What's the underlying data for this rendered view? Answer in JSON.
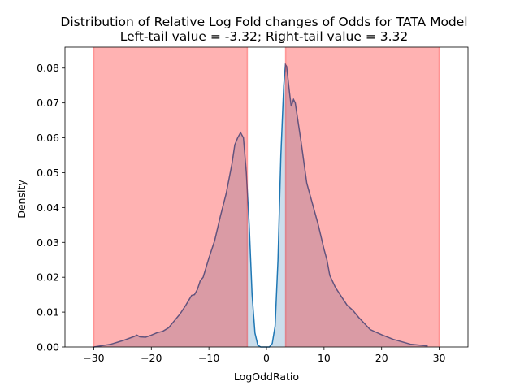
{
  "chart_data": {
    "type": "area",
    "title": "Distribution of Relative Log Fold changes of Odds for TATA Model",
    "subtitle": "Left-tail value = -3.32;  Right-tail value = 3.32",
    "xlabel": "LogOddRatio",
    "ylabel": "Density",
    "xlim": [
      -35,
      35
    ],
    "ylim": [
      0,
      0.086
    ],
    "xticks": [
      -30,
      -20,
      -10,
      0,
      10,
      20,
      30
    ],
    "yticks": [
      0.0,
      0.01,
      0.02,
      0.03,
      0.04,
      0.05,
      0.06,
      0.07,
      0.08
    ],
    "xtick_labels": [
      "−30",
      "−20",
      "−10",
      "0",
      "10",
      "20",
      "30"
    ],
    "ytick_labels": [
      "0.00",
      "0.01",
      "0.02",
      "0.03",
      "0.04",
      "0.05",
      "0.06",
      "0.07",
      "0.08"
    ],
    "grid": false,
    "tail_regions": [
      {
        "x_start": -30,
        "x_end": -3.32
      },
      {
        "x_start": 3.32,
        "x_end": 30
      }
    ],
    "series": [
      {
        "x": [
          -30,
          -27,
          -25,
          -23,
          -22.5,
          -22,
          -21,
          -20,
          -19,
          -18,
          -17,
          -16,
          -15,
          -14,
          -13,
          -12.5,
          -12,
          -11.5,
          -11,
          -10,
          -9,
          -8,
          -7,
          -6,
          -5.5,
          -5,
          -4.5,
          -4,
          -3.5,
          -3,
          -2.5,
          -2,
          -1.5,
          -1,
          -0.5,
          0,
          0.5,
          1,
          1.5,
          2,
          2.5,
          3,
          3.3,
          3.5,
          4,
          4.3,
          4.7,
          5,
          6,
          7,
          8,
          9,
          10,
          10.5,
          11,
          12,
          13,
          14,
          15,
          16,
          18,
          20,
          22,
          25,
          28
        ],
        "y": [
          0.0,
          0.0008,
          0.0018,
          0.003,
          0.0034,
          0.0029,
          0.0028,
          0.0034,
          0.0041,
          0.0045,
          0.0055,
          0.0075,
          0.0095,
          0.012,
          0.0148,
          0.015,
          0.0165,
          0.019,
          0.02,
          0.0255,
          0.0305,
          0.0375,
          0.044,
          0.0525,
          0.058,
          0.06,
          0.0615,
          0.06,
          0.05,
          0.035,
          0.015,
          0.004,
          0.0005,
          0.0,
          0.0,
          0.0,
          0.0,
          0.001,
          0.006,
          0.025,
          0.055,
          0.075,
          0.081,
          0.0805,
          0.073,
          0.069,
          0.071,
          0.07,
          0.059,
          0.047,
          0.041,
          0.035,
          0.028,
          0.025,
          0.0205,
          0.017,
          0.0145,
          0.012,
          0.0105,
          0.0085,
          0.005,
          0.0035,
          0.0022,
          0.0008,
          0.0003
        ]
      }
    ],
    "colors": {
      "kde_line": "#1f77b4",
      "kde_fill": "#a6c8e0",
      "tail_fill": "#ff0000",
      "axis": "#000000"
    }
  }
}
